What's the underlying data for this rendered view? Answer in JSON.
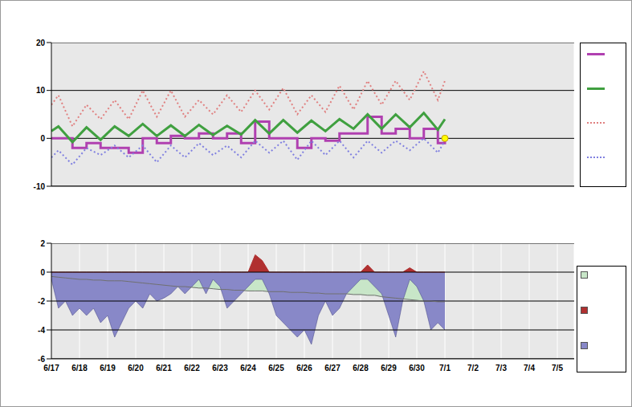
{
  "chart_data": [
    {
      "type": "line",
      "tick_labels": "y",
      "grid": true,
      "x": [
        0,
        0.25,
        0.75,
        1.25,
        1.75,
        2.25,
        2.75,
        3.25,
        3.75,
        4.25,
        4.75,
        5.25,
        5.75,
        6.25,
        6.75,
        7.25,
        7.75,
        8.25,
        8.75,
        9.25,
        9.75,
        10.25,
        10.75,
        11.25,
        11.75,
        12.25,
        12.75,
        13.25,
        13.75,
        14
      ],
      "xlim": [
        0,
        18.6
      ],
      "xticks": [
        {
          "value": 0,
          "label": "6/17"
        },
        {
          "value": 1,
          "label": "6/18"
        },
        {
          "value": 2,
          "label": "6/19"
        },
        {
          "value": 3,
          "label": "6/20"
        },
        {
          "value": 4,
          "label": "6/21"
        },
        {
          "value": 5,
          "label": "6/22"
        },
        {
          "value": 6,
          "label": "6/23"
        },
        {
          "value": 7,
          "label": "6/24"
        },
        {
          "value": 8,
          "label": "6/25"
        },
        {
          "value": 9,
          "label": "6/26"
        },
        {
          "value": 10,
          "label": "6/27"
        },
        {
          "value": 11,
          "label": "6/28"
        },
        {
          "value": 12,
          "label": "6/29"
        },
        {
          "value": 13,
          "label": "6/30"
        },
        {
          "value": 14,
          "label": "7/1"
        },
        {
          "value": 15,
          "label": "7/2"
        },
        {
          "value": 16,
          "label": "7/3"
        },
        {
          "value": 17,
          "label": "7/4"
        },
        {
          "value": 18,
          "label": "7/5"
        }
      ],
      "ylim": [
        -10,
        20
      ],
      "yticks": [
        -10,
        0,
        10,
        20
      ],
      "series": [
        {
          "color": "#b040b0",
          "line_style": "step",
          "values": [
            0,
            0,
            -2,
            -1,
            -2,
            -2,
            -3,
            0,
            -1,
            0.5,
            0,
            1,
            0,
            1,
            -1,
            3.5,
            0,
            0,
            -2,
            0,
            -0.5,
            1,
            1,
            4.5,
            1,
            2,
            0,
            2,
            -1,
            0
          ]
        },
        {
          "color": "#40a040",
          "line_style": "solid",
          "values": [
            1.5,
            2.5,
            -0.8,
            2.3,
            -0.3,
            2.5,
            0.5,
            3.0,
            0.5,
            2.7,
            0.5,
            2.8,
            0.7,
            2.6,
            0.8,
            3.8,
            1.0,
            3.8,
            1.2,
            3.7,
            1.5,
            4.0,
            2.0,
            5.0,
            2.0,
            5.0,
            2.3,
            5.3,
            1.8,
            4.0
          ]
        },
        {
          "color": "#e08080",
          "line_style": "dotted",
          "values": [
            7,
            9,
            2.5,
            7,
            4,
            8,
            4,
            10,
            4.5,
            10,
            4.5,
            8,
            5,
            9,
            5.5,
            10,
            6,
            10.5,
            5,
            9,
            5.5,
            11,
            6,
            12,
            7,
            12,
            8,
            14,
            8,
            12
          ]
        },
        {
          "color": "#8080e0",
          "line_style": "dotted",
          "values": [
            -4,
            -2.5,
            -5.5,
            -2,
            -3.5,
            -1.5,
            -4,
            -1.5,
            -5,
            -1.5,
            -4,
            -1,
            -3.5,
            -1.5,
            -4,
            -0.5,
            -3,
            -0.5,
            -4.5,
            -0.5,
            -3.5,
            -0.5,
            -4,
            -0.5,
            -3,
            -0.5,
            -2.5,
            0,
            -3,
            -0.5
          ]
        },
        {
          "color": "#ffff00",
          "type": "scatter",
          "marker": "circle",
          "values": [
            null,
            null,
            null,
            null,
            null,
            null,
            null,
            null,
            null,
            null,
            null,
            null,
            null,
            null,
            null,
            null,
            null,
            null,
            null,
            null,
            null,
            null,
            null,
            null,
            null,
            null,
            null,
            null,
            null,
            0
          ]
        }
      ]
    },
    {
      "type": "area",
      "grid": true,
      "x": [
        0,
        0.25,
        0.5,
        0.75,
        1,
        1.25,
        1.5,
        1.75,
        2,
        2.25,
        2.5,
        2.75,
        3,
        3.25,
        3.5,
        3.75,
        4,
        4.25,
        4.5,
        4.75,
        5,
        5.25,
        5.5,
        5.75,
        6,
        6.25,
        6.5,
        6.75,
        7,
        7.25,
        7.5,
        7.75,
        8,
        8.25,
        8.5,
        8.75,
        9,
        9.25,
        9.5,
        9.75,
        10,
        10.25,
        10.5,
        10.75,
        11,
        11.25,
        11.5,
        11.75,
        12,
        12.25,
        12.5,
        12.75,
        13,
        13.25,
        13.5,
        13.75,
        14
      ],
      "xlim": [
        0,
        18.6
      ],
      "xticks": [
        {
          "value": 0,
          "label": "6/17"
        },
        {
          "value": 1,
          "label": "6/18"
        },
        {
          "value": 2,
          "label": "6/19"
        },
        {
          "value": 3,
          "label": "6/20"
        },
        {
          "value": 4,
          "label": "6/21"
        },
        {
          "value": 5,
          "label": "6/22"
        },
        {
          "value": 6,
          "label": "6/23"
        },
        {
          "value": 7,
          "label": "6/24"
        },
        {
          "value": 8,
          "label": "6/25"
        },
        {
          "value": 9,
          "label": "6/26"
        },
        {
          "value": 10,
          "label": "6/27"
        },
        {
          "value": 11,
          "label": "6/28"
        },
        {
          "value": 12,
          "label": "6/29"
        },
        {
          "value": 13,
          "label": "6/30"
        },
        {
          "value": 14,
          "label": "7/1"
        },
        {
          "value": 15,
          "label": "7/2"
        },
        {
          "value": 16,
          "label": "7/3"
        },
        {
          "value": 17,
          "label": "7/4"
        },
        {
          "value": 18,
          "label": "7/5"
        }
      ],
      "ylim": [
        -6,
        2
      ],
      "yticks": [
        -6,
        -4,
        -2,
        0,
        2
      ],
      "series": [
        {
          "color": "#c8e6c8",
          "values": [
            -0.3,
            -0.35,
            -0.4,
            -0.45,
            -0.5,
            -0.5,
            -0.55,
            -0.55,
            -0.6,
            -0.6,
            -0.6,
            -0.65,
            -0.7,
            -0.75,
            -0.8,
            -0.85,
            -0.9,
            -0.95,
            -1.0,
            -1.0,
            -1.05,
            -1.1,
            -1.1,
            -1.15,
            -1.2,
            -1.2,
            -1.25,
            -1.25,
            -1.3,
            -1.3,
            -1.3,
            -1.35,
            -1.35,
            -1.35,
            -1.4,
            -1.4,
            -1.4,
            -1.45,
            -1.45,
            -1.5,
            -1.5,
            -1.5,
            -1.5,
            -1.55,
            -1.55,
            -1.6,
            -1.6,
            -1.7,
            -1.75,
            -1.8,
            -1.85,
            -1.9,
            -1.95,
            -2.0,
            -2.0,
            -2.05,
            -2.05
          ]
        },
        {
          "color": "#b03030",
          "values": [
            0,
            0,
            0,
            0,
            0,
            0,
            0,
            0,
            0,
            0,
            0,
            0,
            0,
            0,
            0,
            0,
            0,
            0,
            0,
            0,
            0,
            0,
            0,
            0,
            0,
            0,
            0,
            0,
            0,
            1.2,
            0.8,
            0,
            0,
            0,
            0,
            0,
            0,
            0,
            0,
            0,
            0,
            0,
            0,
            0,
            0,
            0.5,
            0,
            0,
            0,
            0,
            0,
            0.3,
            0,
            0,
            0,
            0,
            0
          ]
        },
        {
          "color": "#8888c8",
          "values": [
            -0.5,
            -2.5,
            -2,
            -3,
            -2.5,
            -3,
            -2.5,
            -3.5,
            -3,
            -4.5,
            -3.5,
            -2.5,
            -2,
            -2.5,
            -1.5,
            -2,
            -1.8,
            -1.5,
            -1,
            -1.5,
            -1,
            -0.5,
            -1.5,
            -0.5,
            -1,
            -2.5,
            -2,
            -1.5,
            -1,
            -0.5,
            -0.5,
            -1.5,
            -3,
            -3.5,
            -4,
            -4.5,
            -4,
            -5,
            -3,
            -2,
            -3,
            -2.5,
            -1.5,
            -1,
            -0.5,
            -0.5,
            -1,
            -1.5,
            -3,
            -4.5,
            -2,
            -0.5,
            -1,
            -2,
            -4,
            -3.5,
            -4
          ]
        }
      ]
    }
  ]
}
